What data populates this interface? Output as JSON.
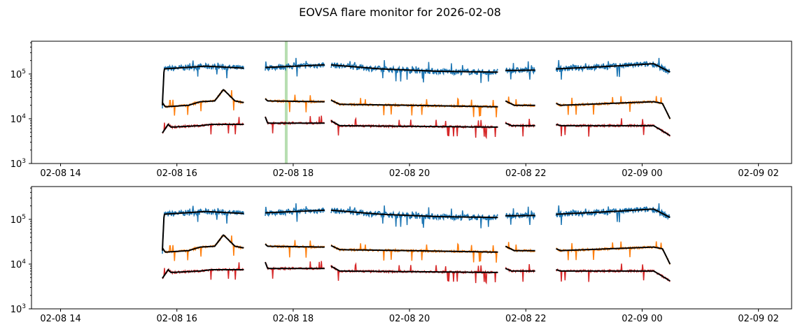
{
  "chart_data": {
    "type": "line",
    "title": "EOVSA flare monitor for 2026-02-08",
    "xlabel": "",
    "ylabel": "",
    "x_units": "hours since 2026-02-08 00:00 UT",
    "xlim": [
      13.5,
      26.57
    ],
    "ylim": [
      1000,
      540000
    ],
    "yscale": "log",
    "x_ticks": [
      {
        "v": 14,
        "label": "02-08 14"
      },
      {
        "v": 16,
        "label": "02-08 16"
      },
      {
        "v": 18,
        "label": "02-08 18"
      },
      {
        "v": 20,
        "label": "02-08 20"
      },
      {
        "v": 22,
        "label": "02-08 22"
      },
      {
        "v": 24,
        "label": "02-09 00"
      },
      {
        "v": 26,
        "label": "02-09 02"
      }
    ],
    "y_ticks": [
      {
        "v": 1000,
        "base": "10",
        "exp": "3"
      },
      {
        "v": 10000,
        "base": "10",
        "exp": "4"
      },
      {
        "v": 100000,
        "base": "10",
        "exp": "5"
      }
    ],
    "colors": {
      "blue": "#1f77b4",
      "orange": "#ff7f0e",
      "red": "#d62728",
      "smooth": "#000000",
      "marker": "#98d090"
    },
    "panels": [
      {
        "name": "top",
        "marker_line_x": 17.88
      },
      {
        "name": "bottom",
        "marker_line_x": null
      }
    ],
    "series": [
      {
        "name": "blue",
        "color": "#1f77b4",
        "segments": [
          [
            [
              15.75,
              20000
            ],
            [
              15.78,
              130000
            ],
            [
              16.5,
              150000
            ],
            [
              17.15,
              135000
            ]
          ],
          [
            [
              17.52,
              140000
            ],
            [
              18.54,
              160000
            ]
          ],
          [
            [
              18.65,
              160000
            ],
            [
              19.5,
              130000
            ],
            [
              20.5,
              115000
            ],
            [
              21.52,
              110000
            ]
          ],
          [
            [
              21.65,
              120000
            ],
            [
              22.16,
              122000
            ]
          ],
          [
            [
              22.52,
              130000
            ],
            [
              23.5,
              150000
            ],
            [
              24.2,
              170000
            ],
            [
              24.48,
              110000
            ]
          ]
        ]
      },
      {
        "name": "orange",
        "color": "#ff7f0e",
        "segments": [
          [
            [
              15.75,
              23000
            ],
            [
              15.8,
              18500
            ],
            [
              16.2,
              20000
            ],
            [
              16.4,
              24000
            ],
            [
              16.65,
              25000
            ],
            [
              16.8,
              45000
            ],
            [
              17.0,
              25000
            ],
            [
              17.15,
              23000
            ]
          ],
          [
            [
              17.52,
              28000
            ],
            [
              17.56,
              25000
            ],
            [
              18.54,
              24000
            ]
          ],
          [
            [
              18.65,
              26000
            ],
            [
              18.8,
              21000
            ],
            [
              20.0,
              20000
            ],
            [
              21.52,
              18500
            ]
          ],
          [
            [
              21.65,
              25000
            ],
            [
              21.8,
              20000
            ],
            [
              22.16,
              20000
            ]
          ],
          [
            [
              22.52,
              22000
            ],
            [
              22.6,
              20000
            ],
            [
              24.2,
              24000
            ],
            [
              24.35,
              22000
            ],
            [
              24.48,
              10000
            ]
          ]
        ]
      },
      {
        "name": "red",
        "color": "#d62728",
        "segments": [
          [
            [
              15.75,
              4800
            ],
            [
              15.85,
              7500
            ],
            [
              15.9,
              6500
            ],
            [
              16.4,
              7000
            ],
            [
              16.6,
              7500
            ],
            [
              17.15,
              7500
            ]
          ],
          [
            [
              17.52,
              11000
            ],
            [
              17.56,
              8000
            ],
            [
              18.54,
              8000
            ]
          ],
          [
            [
              18.65,
              9000
            ],
            [
              18.8,
              7000
            ],
            [
              21.52,
              6500
            ]
          ],
          [
            [
              21.65,
              8000
            ],
            [
              21.75,
              7000
            ],
            [
              22.16,
              7000
            ]
          ],
          [
            [
              22.52,
              7500
            ],
            [
              22.6,
              7000
            ],
            [
              24.2,
              7000
            ],
            [
              24.48,
              4200
            ]
          ]
        ]
      }
    ]
  }
}
